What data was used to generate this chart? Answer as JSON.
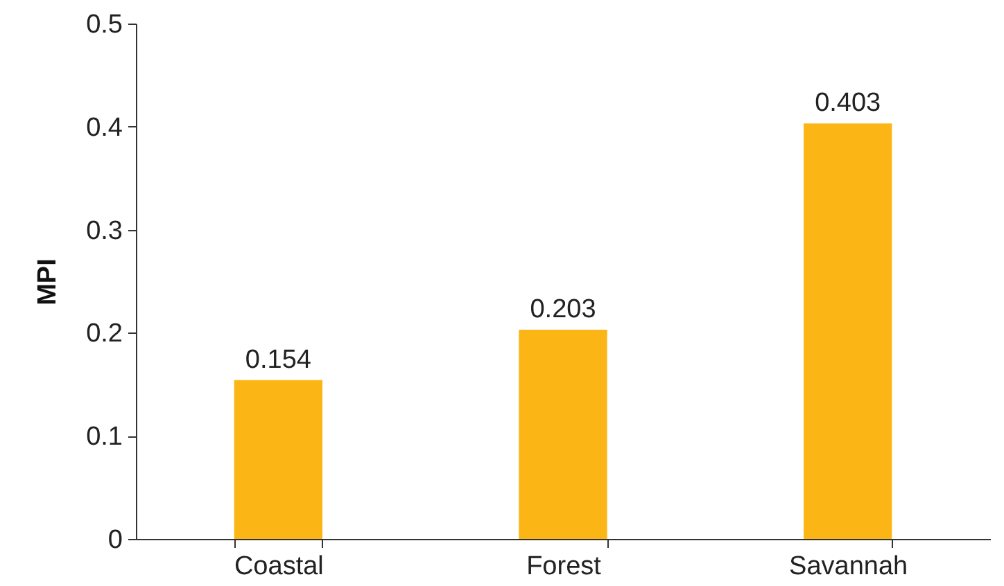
{
  "chart_data": {
    "type": "bar",
    "ylabel": "MPI",
    "categories": [
      "Coastal",
      "Forest",
      "Savannah"
    ],
    "values": [
      0.154,
      0.203,
      0.403
    ],
    "color": "#fbb515",
    "ylim": [
      0,
      0.5
    ],
    "yticks": [
      0,
      0.1,
      0.2,
      0.3,
      0.4,
      0.5
    ],
    "grid": false,
    "data_labels": true
  }
}
